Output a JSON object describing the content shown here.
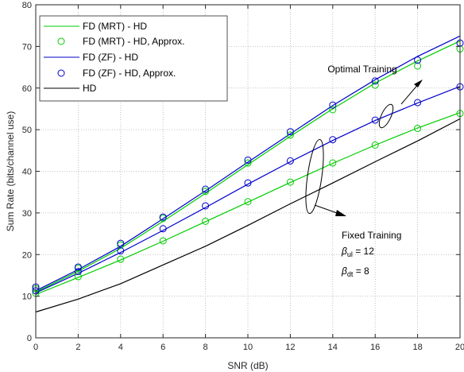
{
  "chart_data": {
    "type": "line",
    "xlabel": "SNR (dB)",
    "ylabel": "Sum Rate (bits/channel use)",
    "xlim": [
      0,
      20
    ],
    "ylim": [
      0,
      80
    ],
    "xticks": [
      0,
      2,
      4,
      6,
      8,
      10,
      12,
      14,
      16,
      18,
      20
    ],
    "yticks": [
      0,
      10,
      20,
      30,
      40,
      50,
      60,
      70,
      80
    ],
    "grid": true,
    "legend_position": "top-left",
    "series": [
      {
        "name": "FD (MRT) - HD",
        "style": "line",
        "color": "#00cc00",
        "group": "optimal",
        "x": [
          0,
          2,
          4,
          6,
          8,
          10,
          12,
          14,
          16,
          18,
          20
        ],
        "y": [
          11.0,
          16.0,
          21.5,
          28.0,
          34.7,
          41.6,
          48.4,
          55.0,
          61.2,
          66.5,
          71.3
        ]
      },
      {
        "name": "FD (MRT) - HD, Approx.",
        "style": "marker",
        "color": "#00cc00",
        "group": "optimal",
        "x": [
          0,
          2,
          4,
          6,
          8,
          10,
          12,
          14,
          16,
          18,
          20
        ],
        "y": [
          11.8,
          16.7,
          22.3,
          28.7,
          35.2,
          42.0,
          48.7,
          54.8,
          60.7,
          65.3,
          69.4
        ]
      },
      {
        "name": "FD (ZF) - HD",
        "style": "line",
        "color": "#0000cc",
        "group": "optimal",
        "x": [
          0,
          2,
          4,
          6,
          8,
          10,
          12,
          14,
          16,
          18,
          20
        ],
        "y": [
          11.3,
          16.4,
          22.0,
          28.6,
          35.3,
          42.2,
          49.0,
          55.8,
          62.0,
          67.6,
          72.5
        ]
      },
      {
        "name": "FD (ZF) - HD, Approx.",
        "style": "marker",
        "color": "#0000cc",
        "group": "optimal",
        "x": [
          0,
          2,
          4,
          6,
          8,
          10,
          12,
          14,
          16,
          18,
          20
        ],
        "y": [
          12.2,
          17.0,
          22.7,
          29.0,
          35.7,
          42.7,
          49.5,
          55.9,
          61.7,
          66.7,
          70.8
        ]
      },
      {
        "name": "HD",
        "style": "line",
        "color": "#000000",
        "group": "baseline",
        "x": [
          0,
          2,
          4,
          6,
          8,
          10,
          12,
          14,
          16,
          18,
          20
        ],
        "y": [
          6.2,
          9.3,
          13.0,
          17.5,
          22.0,
          27.0,
          32.2,
          37.2,
          42.3,
          47.3,
          52.6
        ]
      },
      {
        "name": "",
        "style": "line",
        "color": "#00cc00",
        "group": "fixed",
        "x": [
          0,
          2,
          4,
          6,
          8,
          10,
          12,
          14,
          16,
          18,
          20
        ],
        "y": [
          10.4,
          14.5,
          18.7,
          23.2,
          27.9,
          32.6,
          37.3,
          41.9,
          46.3,
          50.4,
          54.1
        ]
      },
      {
        "name": "",
        "style": "marker",
        "color": "#00cc00",
        "group": "fixed",
        "x": [
          0,
          2,
          4,
          6,
          8,
          10,
          12,
          14,
          16,
          18,
          20
        ],
        "y": [
          10.7,
          14.7,
          18.9,
          23.3,
          28.0,
          32.7,
          37.4,
          42.0,
          46.3,
          50.3,
          53.9
        ]
      },
      {
        "name": "",
        "style": "line",
        "color": "#0000cc",
        "group": "fixed",
        "x": [
          0,
          2,
          4,
          6,
          8,
          10,
          12,
          14,
          16,
          18,
          20
        ],
        "y": [
          10.8,
          15.5,
          20.5,
          25.8,
          31.3,
          36.9,
          42.3,
          47.4,
          52.2,
          56.4,
          60.4
        ]
      },
      {
        "name": "",
        "style": "marker",
        "color": "#0000cc",
        "group": "fixed",
        "x": [
          0,
          2,
          4,
          6,
          8,
          10,
          12,
          14,
          16,
          18,
          20
        ],
        "y": [
          11.3,
          15.9,
          20.9,
          26.2,
          31.7,
          37.2,
          42.5,
          47.6,
          52.3,
          56.5,
          60.3
        ]
      }
    ],
    "annotations": {
      "optimal": "Optimal Training",
      "fixed": "Fixed Training",
      "beta_ul_symbol": "β",
      "beta_ul_sub": "ul",
      "beta_ul_value": " = 12",
      "beta_dt_symbol": "β",
      "beta_dt_sub": "dt",
      "beta_dt_value": " = 8"
    }
  }
}
